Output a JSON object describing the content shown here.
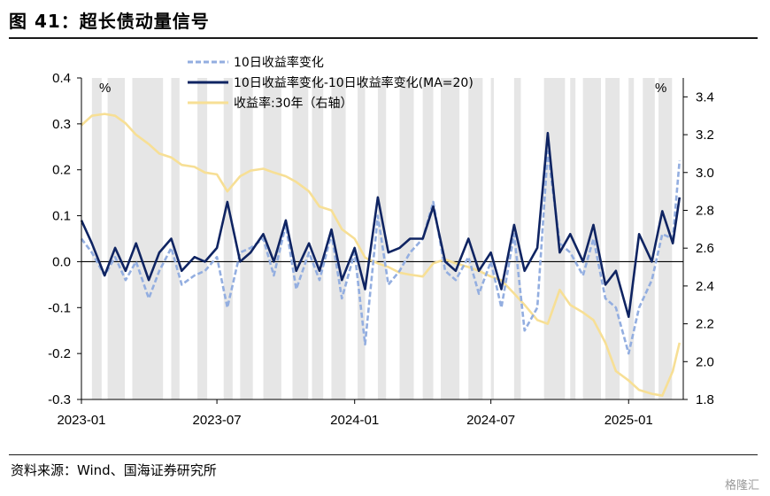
{
  "title": "图 41：超长债动量信号",
  "source": "资料来源：Wind、国海证券研究所",
  "watermark": "格隆汇",
  "chart_data": {
    "type": "line",
    "x_start": "2023-01-01",
    "x_end": "2025-03-15",
    "x_ticks": [
      {
        "date": "2023-01-01",
        "label": "2023-01"
      },
      {
        "date": "2023-07-01",
        "label": "2023-07"
      },
      {
        "date": "2024-01-01",
        "label": "2024-01"
      },
      {
        "date": "2024-07-01",
        "label": "2024-07"
      },
      {
        "date": "2025-01-01",
        "label": "2025-01"
      }
    ],
    "y_left": {
      "min": -0.3,
      "max": 0.4,
      "ticks": [
        "0.4",
        "0.3",
        "0.2",
        "0.1",
        "0.0",
        "-0.1",
        "-0.2",
        "-0.3"
      ],
      "unit": "%"
    },
    "y_right": {
      "min": 1.8,
      "max": 3.5,
      "ticks": [
        "3.4",
        "3.2",
        "3.0",
        "2.8",
        "2.6",
        "2.4",
        "2.2",
        "2.0",
        "1.8"
      ],
      "unit": "%"
    },
    "legend": [
      "10日收益率变化",
      "10日收益率变化-10日收益率变化(MA=20)",
      "收益率:30年（右轴）"
    ],
    "colors": {
      "s1": "#93aee0",
      "s2": "#0f2462",
      "s3": "#f7df95",
      "shade": "#e6e6e6"
    },
    "shaded_periods": [
      [
        "2023-01-15",
        "2023-01-28"
      ],
      [
        "2023-02-05",
        "2023-02-28"
      ],
      [
        "2023-03-10",
        "2023-04-20"
      ],
      [
        "2023-05-01",
        "2023-05-12"
      ],
      [
        "2023-06-05",
        "2023-06-18"
      ],
      [
        "2023-07-10",
        "2023-07-22"
      ],
      [
        "2023-08-01",
        "2023-08-18"
      ],
      [
        "2023-09-01",
        "2023-09-25"
      ],
      [
        "2023-10-10",
        "2023-10-31"
      ],
      [
        "2023-11-05",
        "2023-11-20"
      ],
      [
        "2023-12-01",
        "2023-12-20"
      ],
      [
        "2024-01-05",
        "2024-01-15"
      ],
      [
        "2024-02-01",
        "2024-02-12"
      ],
      [
        "2024-03-01",
        "2024-03-20"
      ],
      [
        "2024-04-01",
        "2024-04-15"
      ],
      [
        "2024-04-25",
        "2024-05-20"
      ],
      [
        "2024-06-01",
        "2024-06-20"
      ],
      [
        "2024-07-01",
        "2024-07-05"
      ],
      [
        "2024-08-01",
        "2024-08-10"
      ],
      [
        "2024-09-10",
        "2024-10-08"
      ],
      [
        "2024-10-15",
        "2024-10-22"
      ],
      [
        "2024-11-01",
        "2024-11-25"
      ],
      [
        "2024-12-01",
        "2024-12-20"
      ],
      [
        "2025-01-01",
        "2025-01-08"
      ],
      [
        "2025-01-20",
        "2025-02-05"
      ],
      [
        "2025-02-10",
        "2025-02-28"
      ]
    ],
    "series": [
      {
        "name": "10日收益率变化",
        "style": "dashed",
        "x": [
          "2023-01-01",
          "2023-01-15",
          "2023-02-01",
          "2023-02-15",
          "2023-03-01",
          "2023-03-15",
          "2023-04-01",
          "2023-04-15",
          "2023-05-01",
          "2023-05-15",
          "2023-06-01",
          "2023-06-15",
          "2023-07-01",
          "2023-07-15",
          "2023-08-01",
          "2023-08-15",
          "2023-09-01",
          "2023-09-15",
          "2023-10-01",
          "2023-10-15",
          "2023-11-01",
          "2023-11-15",
          "2023-12-01",
          "2023-12-15",
          "2024-01-01",
          "2024-01-15",
          "2024-02-01",
          "2024-02-15",
          "2024-03-01",
          "2024-03-15",
          "2024-04-01",
          "2024-04-15",
          "2024-05-01",
          "2024-05-15",
          "2024-06-01",
          "2024-06-15",
          "2024-07-01",
          "2024-07-15",
          "2024-08-01",
          "2024-08-15",
          "2024-09-01",
          "2024-09-15",
          "2024-10-01",
          "2024-10-15",
          "2024-11-01",
          "2024-11-15",
          "2024-12-01",
          "2024-12-15",
          "2025-01-01",
          "2025-01-15",
          "2025-02-01",
          "2025-02-15",
          "2025-03-01",
          "2025-03-10"
        ],
        "values": [
          0.05,
          0.02,
          -0.03,
          0.01,
          -0.04,
          0.0,
          -0.08,
          -0.02,
          0.03,
          -0.05,
          -0.03,
          -0.02,
          0.01,
          -0.1,
          0.02,
          0.03,
          0.05,
          -0.03,
          0.08,
          -0.06,
          0.02,
          -0.04,
          0.06,
          -0.08,
          0.02,
          -0.18,
          0.1,
          -0.05,
          -0.02,
          0.02,
          0.05,
          0.13,
          -0.02,
          -0.04,
          0.01,
          -0.07,
          0.0,
          -0.1,
          0.06,
          -0.15,
          -0.1,
          0.24,
          0.04,
          0.02,
          -0.03,
          0.05,
          -0.08,
          -0.1,
          -0.2,
          -0.1,
          -0.04,
          0.06,
          0.05,
          0.22
        ]
      },
      {
        "name": "10日收益率变化-10日收益率变化(MA=20)",
        "style": "solid",
        "x": [
          "2023-01-01",
          "2023-01-15",
          "2023-02-01",
          "2023-02-15",
          "2023-03-01",
          "2023-03-15",
          "2023-04-01",
          "2023-04-15",
          "2023-05-01",
          "2023-05-15",
          "2023-06-01",
          "2023-06-15",
          "2023-07-01",
          "2023-07-15",
          "2023-08-01",
          "2023-08-15",
          "2023-09-01",
          "2023-09-15",
          "2023-10-01",
          "2023-10-15",
          "2023-11-01",
          "2023-11-15",
          "2023-12-01",
          "2023-12-15",
          "2024-01-01",
          "2024-01-15",
          "2024-02-01",
          "2024-02-15",
          "2024-03-01",
          "2024-03-15",
          "2024-04-01",
          "2024-04-15",
          "2024-05-01",
          "2024-05-15",
          "2024-06-01",
          "2024-06-15",
          "2024-07-01",
          "2024-07-15",
          "2024-08-01",
          "2024-08-15",
          "2024-09-01",
          "2024-09-15",
          "2024-10-01",
          "2024-10-15",
          "2024-11-01",
          "2024-11-15",
          "2024-12-01",
          "2024-12-15",
          "2025-01-01",
          "2025-01-15",
          "2025-02-01",
          "2025-02-15",
          "2025-03-01",
          "2025-03-10"
        ],
        "values": [
          0.09,
          0.04,
          -0.03,
          0.03,
          -0.02,
          0.04,
          -0.04,
          0.02,
          0.05,
          -0.02,
          0.01,
          0.0,
          0.03,
          0.13,
          0.0,
          0.02,
          0.06,
          0.0,
          0.09,
          -0.02,
          0.04,
          -0.02,
          0.07,
          -0.04,
          0.03,
          -0.06,
          0.14,
          0.02,
          0.03,
          0.05,
          0.05,
          0.12,
          0.0,
          -0.02,
          0.05,
          -0.02,
          0.02,
          -0.06,
          0.08,
          -0.02,
          0.03,
          0.28,
          0.02,
          0.06,
          0.0,
          0.08,
          -0.05,
          -0.02,
          -0.12,
          0.06,
          0.0,
          0.11,
          0.04,
          0.14
        ]
      },
      {
        "name": "收益率:30年（右轴）",
        "style": "solid",
        "axis": "right",
        "x": [
          "2023-01-01",
          "2023-01-15",
          "2023-02-01",
          "2023-02-15",
          "2023-03-01",
          "2023-03-15",
          "2023-04-01",
          "2023-04-15",
          "2023-05-01",
          "2023-05-15",
          "2023-06-01",
          "2023-06-15",
          "2023-07-01",
          "2023-07-15",
          "2023-08-01",
          "2023-08-15",
          "2023-09-01",
          "2023-09-15",
          "2023-10-01",
          "2023-10-15",
          "2023-11-01",
          "2023-11-15",
          "2023-12-01",
          "2023-12-15",
          "2024-01-01",
          "2024-01-15",
          "2024-02-01",
          "2024-02-15",
          "2024-03-01",
          "2024-03-15",
          "2024-04-01",
          "2024-04-15",
          "2024-05-01",
          "2024-05-15",
          "2024-06-01",
          "2024-06-15",
          "2024-07-01",
          "2024-07-15",
          "2024-08-01",
          "2024-08-15",
          "2024-09-01",
          "2024-09-15",
          "2024-10-01",
          "2024-10-15",
          "2024-11-01",
          "2024-11-15",
          "2024-12-01",
          "2024-12-15",
          "2025-01-01",
          "2025-01-15",
          "2025-02-01",
          "2025-02-15",
          "2025-03-01",
          "2025-03-10"
        ],
        "values": [
          3.25,
          3.3,
          3.31,
          3.3,
          3.26,
          3.2,
          3.15,
          3.1,
          3.08,
          3.04,
          3.03,
          3.0,
          2.99,
          2.9,
          2.98,
          3.01,
          3.02,
          3.0,
          2.98,
          2.95,
          2.9,
          2.82,
          2.8,
          2.7,
          2.65,
          2.55,
          2.52,
          2.5,
          2.47,
          2.46,
          2.45,
          2.52,
          2.54,
          2.52,
          2.5,
          2.48,
          2.45,
          2.43,
          2.36,
          2.3,
          2.22,
          2.2,
          2.38,
          2.3,
          2.26,
          2.22,
          2.1,
          1.95,
          1.9,
          1.85,
          1.83,
          1.82,
          1.95,
          2.1
        ]
      }
    ]
  }
}
